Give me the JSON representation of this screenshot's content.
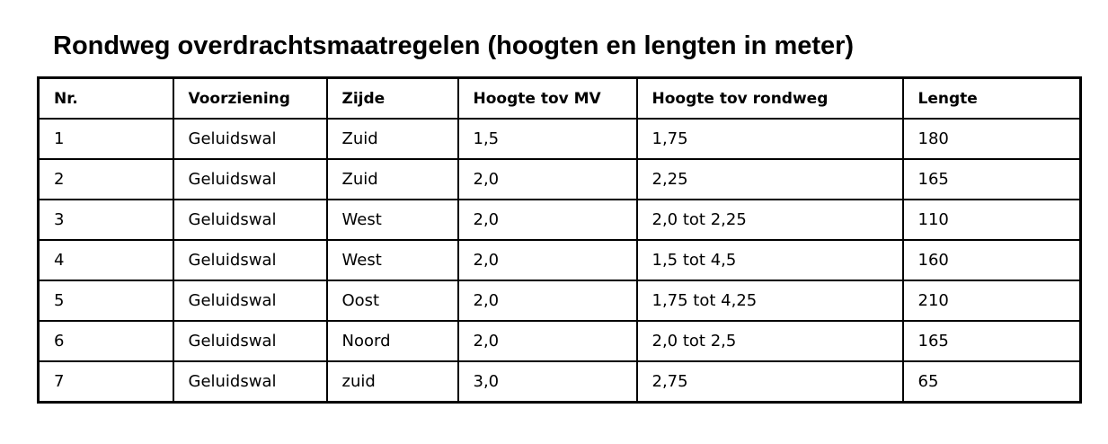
{
  "title": "Rondweg overdrachtsmaatregelen (hoogten en lengten in meter)",
  "table": {
    "headers": [
      "Nr.",
      "Voorziening",
      "Zijde",
      "Hoogte tov MV",
      "Hoogte tov rondweg",
      "Lengte"
    ],
    "rows": [
      [
        "1",
        "Geluidswal",
        "Zuid",
        "1,5",
        "1,75",
        "180"
      ],
      [
        "2",
        "Geluidswal",
        "Zuid",
        "2,0",
        "2,25",
        "165"
      ],
      [
        "3",
        "Geluidswal",
        "West",
        "2,0",
        "2,0 tot 2,25",
        "110"
      ],
      [
        "4",
        "Geluidswal",
        "West",
        "2,0",
        "1,5 tot 4,5",
        "160"
      ],
      [
        "5",
        "Geluidswal",
        "Oost",
        "2,0",
        "1,75 tot 4,25",
        "210"
      ],
      [
        "6",
        "Geluidswal",
        "Noord",
        "2,0",
        "2,0 tot 2,5",
        "165"
      ],
      [
        "7",
        "Geluidswal",
        "zuid",
        "3,0",
        "2,75",
        "65"
      ]
    ]
  }
}
